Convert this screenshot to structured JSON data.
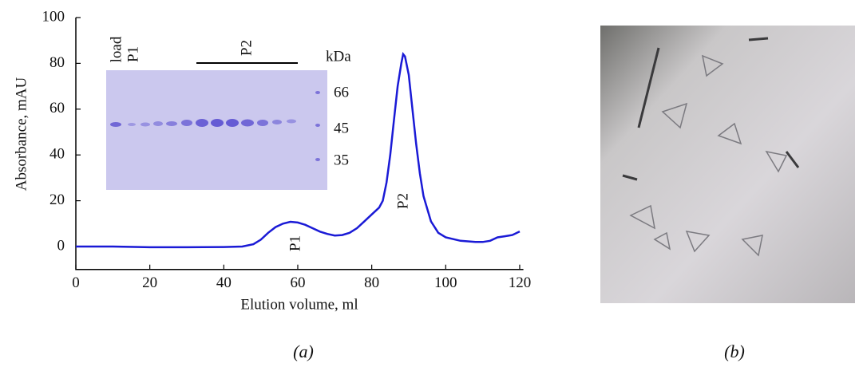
{
  "chart_data": {
    "type": "line",
    "xlabel": "Elution volume, ml",
    "ylabel": "Absorbance, mAU",
    "xlim": [
      0,
      121
    ],
    "ylim": [
      -10,
      100
    ],
    "xticks": [
      0,
      20,
      40,
      60,
      80,
      100,
      120
    ],
    "yticks": [
      0,
      20,
      40,
      60,
      80,
      100
    ],
    "color": "#1a1ad6",
    "x": [
      0,
      10,
      20,
      30,
      40,
      45,
      48,
      50,
      52,
      54,
      56,
      58,
      60,
      62,
      64,
      66,
      68,
      70,
      72,
      74,
      76,
      78,
      80,
      82,
      83,
      84,
      85,
      86,
      87,
      88,
      88.5,
      89,
      90,
      91,
      92,
      93,
      94,
      96,
      98,
      100,
      104,
      108,
      110,
      112,
      114,
      116,
      118,
      120
    ],
    "values": [
      0,
      0,
      -0.3,
      -0.3,
      -0.2,
      0,
      1,
      3,
      6,
      8.5,
      10,
      10.8,
      10.5,
      9.5,
      8,
      6.5,
      5.5,
      4.8,
      5,
      6,
      8,
      11,
      14,
      17,
      20,
      28,
      40,
      55,
      70,
      80,
      84,
      83,
      75,
      60,
      45,
      32,
      22,
      11,
      6,
      4,
      2.5,
      2,
      2,
      2.5,
      4,
      4.5,
      5,
      6.6
    ],
    "annotations": [
      "P1",
      "P2"
    ],
    "inset": {
      "lane_labels": [
        "load",
        "P1"
      ],
      "group_label": "P2",
      "unit": "kDa",
      "markers": [
        "66",
        "45",
        "35"
      ]
    }
  },
  "panel_labels": [
    "(a)",
    "(b)"
  ]
}
